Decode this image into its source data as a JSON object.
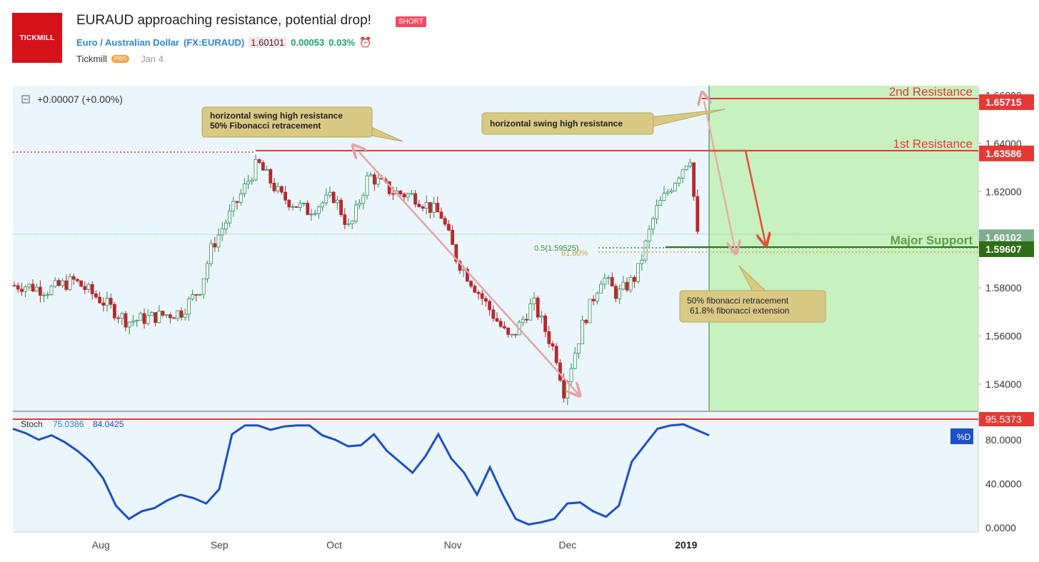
{
  "header": {
    "logo_text": "TICKMILL",
    "title": "EURAUD approaching resistance, potential drop!",
    "badge": "SHORT",
    "symbol_name": "Euro / Australian Dollar",
    "symbol_open": "(",
    "symbol_code": "FX:EURAUD",
    "symbol_close": ")",
    "price": "1.60101",
    "change": "0.00053",
    "change_pct": "0.03%",
    "author": "Tickmill",
    "author_badge": "PRO",
    "date": "Jan 4",
    "alarm_icon": "alarm-clock-icon"
  },
  "chart_data": [
    {
      "type": "candlestick",
      "symbol": "EURAUD",
      "change_readout": "+0.00007 (+0.00%)",
      "y_ticks": [
        "1.66000",
        "1.64000",
        "1.62000",
        "1.60000",
        "1.58000",
        "1.56000",
        "1.54000"
      ],
      "ylim": [
        1.529,
        1.664
      ],
      "x_ticks": [
        "Aug",
        "Sep",
        "Oct",
        "Nov",
        "Dec",
        "2019"
      ],
      "series": [
        {
          "date": "2018-07-12",
          "close": 1.581
        },
        {
          "date": "2018-07-18",
          "close": 1.579
        },
        {
          "date": "2018-07-25",
          "close": 1.583
        },
        {
          "date": "2018-08-01",
          "close": 1.575
        },
        {
          "date": "2018-08-08",
          "close": 1.566
        },
        {
          "date": "2018-08-15",
          "close": 1.568
        },
        {
          "date": "2018-08-22",
          "close": 1.57
        },
        {
          "date": "2018-08-27",
          "close": 1.58
        },
        {
          "date": "2018-08-30",
          "close": 1.597
        },
        {
          "date": "2018-09-05",
          "close": 1.614
        },
        {
          "date": "2018-09-11",
          "close": 1.632
        },
        {
          "date": "2018-09-17",
          "close": 1.618
        },
        {
          "date": "2018-09-24",
          "close": 1.612
        },
        {
          "date": "2018-10-01",
          "close": 1.618
        },
        {
          "date": "2018-10-05",
          "close": 1.604
        },
        {
          "date": "2018-10-10",
          "close": 1.627
        },
        {
          "date": "2018-10-16",
          "close": 1.62
        },
        {
          "date": "2018-10-22",
          "close": 1.618
        },
        {
          "date": "2018-10-29",
          "close": 1.61
        },
        {
          "date": "2018-11-02",
          "close": 1.592
        },
        {
          "date": "2018-11-09",
          "close": 1.575
        },
        {
          "date": "2018-11-16",
          "close": 1.558
        },
        {
          "date": "2018-11-22",
          "close": 1.574
        },
        {
          "date": "2018-11-28",
          "close": 1.552
        },
        {
          "date": "2018-11-30",
          "close": 1.537
        },
        {
          "date": "2018-12-05",
          "close": 1.565
        },
        {
          "date": "2018-12-10",
          "close": 1.585
        },
        {
          "date": "2018-12-14",
          "close": 1.577
        },
        {
          "date": "2018-12-19",
          "close": 1.585
        },
        {
          "date": "2018-12-24",
          "close": 1.612
        },
        {
          "date": "2018-12-28",
          "close": 1.622
        },
        {
          "date": "2019-01-02",
          "close": 1.635
        },
        {
          "date": "2019-01-04",
          "close": 1.601
        }
      ],
      "price_labels": [
        {
          "name": "2nd Resistance",
          "value": 1.65715,
          "label": "1.65715",
          "color": "#e53935"
        },
        {
          "name": "1st Resistance",
          "value": 1.63586,
          "label": "1.63586",
          "color": "#e53935"
        },
        {
          "name": "Last price",
          "value": 1.60102,
          "label": "1.60102",
          "color": "#7fae8f"
        },
        {
          "name": "Major Support",
          "value": 1.59607,
          "label": "1.59607",
          "color": "#2e6e16"
        }
      ],
      "fib_labels": [
        "0.5(1.59525)",
        "61.80%"
      ],
      "callouts": [
        "horizontal swing high resistance\n50% Fibonacci retracement",
        "horizontal swing high resistance",
        "50% fibonacci retracement\n61.8% fibonacci extension"
      ],
      "line_labels": [
        "2nd Resistance",
        "1st Resistance",
        "Major Support"
      ]
    },
    {
      "type": "line",
      "indicator": "Stoch",
      "legend_label": "Stoch",
      "value_k": "75.0386",
      "value_d": "84.0425",
      "series_badge": "%D",
      "ylim": [
        0,
        100
      ],
      "y_ticks": [
        "80.0000",
        "40.0000",
        "0.0000"
      ],
      "level_label": "95.5373",
      "level_value": 95.5373,
      "series": [
        {
          "name": "%D",
          "color": "#1f4fc9",
          "values": [
            90,
            86,
            80,
            84,
            78,
            70,
            60,
            45,
            20,
            8,
            15,
            18,
            25,
            30,
            27,
            22,
            35,
            85,
            93,
            93,
            89,
            92,
            93,
            93,
            84,
            80,
            74,
            75,
            85,
            70,
            60,
            50,
            65,
            85,
            63,
            50,
            30,
            55,
            30,
            8,
            3,
            5,
            8,
            22,
            23,
            15,
            10,
            20,
            60,
            75,
            90,
            93,
            94,
            89,
            84
          ]
        }
      ]
    }
  ],
  "colors": {
    "pane_bg": "#eaf6fb",
    "forecast_zone": "#c8f1c0",
    "up_candle": "#2c8c54",
    "down_candle": "#b7282e",
    "resistance": "#e53935",
    "support": "#2e6e16",
    "fib_green": "#3d8a3a",
    "fib_gold": "#c7a64a",
    "callout_bg": "#d8c985",
    "projection_light": "#e6a3a3",
    "projection_dark": "#e04f3a",
    "stoch_line": "#1f4fc9"
  },
  "icons": {
    "collapse": "collapse-square-icon"
  }
}
